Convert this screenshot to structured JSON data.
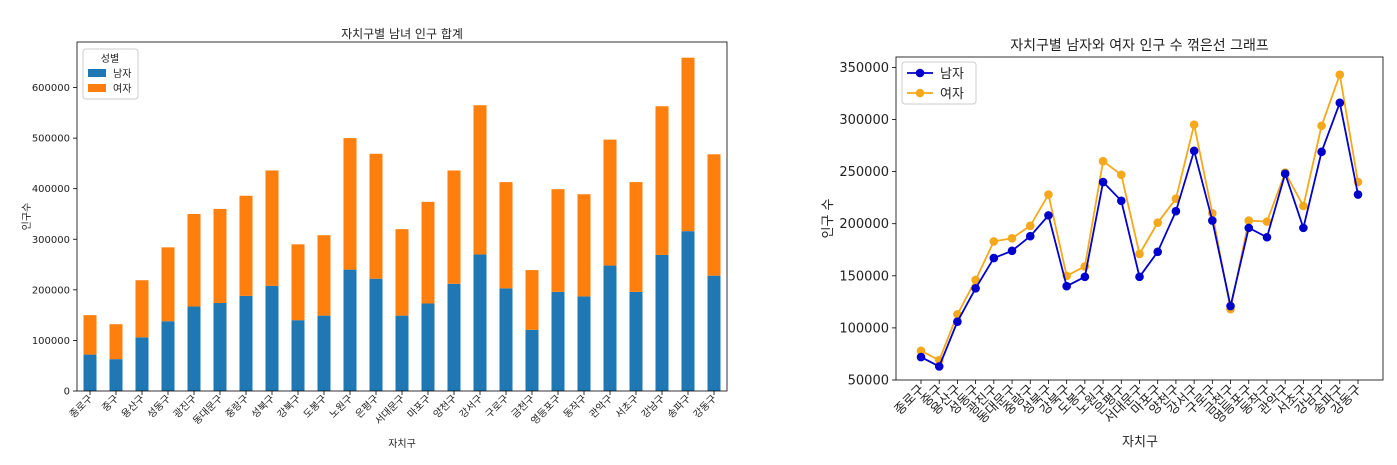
{
  "colors": {
    "male_bar": "#1f77b4",
    "female_bar": "#ff7f0e",
    "male_line": "#0000cd",
    "female_line": "#f5a81a"
  },
  "chart_data": [
    {
      "type": "bar",
      "stacked": true,
      "title": "자치구별 남녀 인구 합계",
      "xlabel": "자치구",
      "ylabel": "인구수",
      "ylim": [
        0,
        690000
      ],
      "yticks": [
        0,
        100000,
        200000,
        300000,
        400000,
        500000,
        600000
      ],
      "ytick_labels": [
        "0",
        "100000",
        "200000",
        "300000",
        "400000",
        "500000",
        "600000"
      ],
      "legend": {
        "title": "성별",
        "placement": "top-left"
      },
      "categories": [
        "종로구",
        "중구",
        "용산구",
        "성동구",
        "광진구",
        "동대문구",
        "중랑구",
        "성북구",
        "강북구",
        "도봉구",
        "노원구",
        "은평구",
        "서대문구",
        "마포구",
        "양천구",
        "강서구",
        "구로구",
        "금천구",
        "영등포구",
        "동작구",
        "관악구",
        "서초구",
        "강남구",
        "송파구",
        "강동구"
      ],
      "series": [
        {
          "name": "남자",
          "values": [
            72000,
            63000,
            106000,
            138000,
            167000,
            174000,
            188000,
            208000,
            140000,
            149000,
            240000,
            222000,
            149000,
            173000,
            212000,
            270000,
            203000,
            121000,
            196000,
            187000,
            248000,
            196000,
            269000,
            316000,
            228000
          ]
        },
        {
          "name": "여자",
          "values": [
            78000,
            69000,
            113000,
            146000,
            183000,
            186000,
            198000,
            228000,
            150000,
            159000,
            260000,
            247000,
            171000,
            201000,
            224000,
            295000,
            210000,
            118000,
            203000,
            202000,
            249000,
            217000,
            294000,
            343000,
            240000
          ]
        }
      ],
      "grid": false
    },
    {
      "type": "line",
      "title": "자치구별 남자와 여자 인구 수 꺾은선 그래프",
      "xlabel": "자치구",
      "ylabel": "인구 수",
      "ylim": [
        50000,
        360000
      ],
      "yticks": [
        50000,
        100000,
        150000,
        200000,
        250000,
        300000,
        350000
      ],
      "ytick_labels": [
        "50000",
        "100000",
        "150000",
        "200000",
        "250000",
        "300000",
        "350000"
      ],
      "legend": {
        "placement": "top-left"
      },
      "categories": [
        "종로구",
        "중구",
        "용산구",
        "성동구",
        "광진구",
        "동대문구",
        "중랑구",
        "성북구",
        "강북구",
        "도봉구",
        "노원구",
        "은평구",
        "서대문구",
        "마포구",
        "양천구",
        "강서구",
        "구로구",
        "금천구",
        "영등포구",
        "동작구",
        "관악구",
        "서초구",
        "강남구",
        "송파구",
        "강동구"
      ],
      "series": [
        {
          "name": "남자",
          "values": [
            72000,
            63000,
            106000,
            138000,
            167000,
            174000,
            188000,
            208000,
            140000,
            149000,
            240000,
            222000,
            149000,
            173000,
            212000,
            270000,
            203000,
            121000,
            196000,
            187000,
            248000,
            196000,
            269000,
            316000,
            228000
          ]
        },
        {
          "name": "여자",
          "values": [
            78000,
            69000,
            113000,
            146000,
            183000,
            186000,
            198000,
            228000,
            150000,
            159000,
            260000,
            247000,
            171000,
            201000,
            224000,
            295000,
            210000,
            118000,
            203000,
            202000,
            249000,
            217000,
            294000,
            343000,
            240000
          ]
        }
      ],
      "grid": false
    }
  ]
}
